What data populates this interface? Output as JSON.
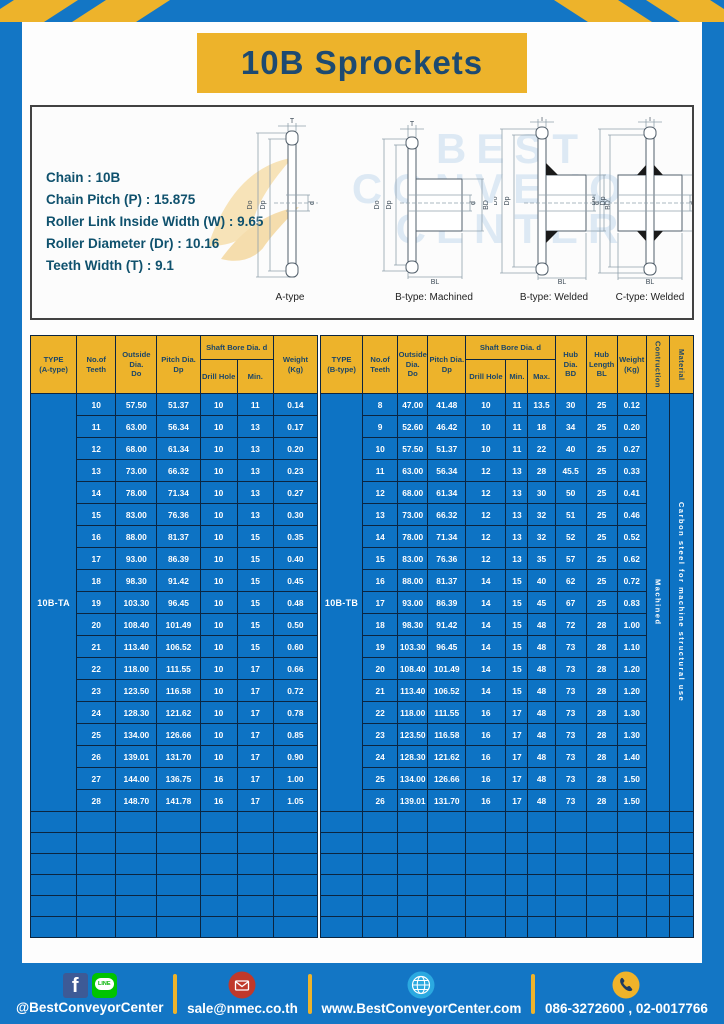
{
  "title": "10B Sprockets",
  "specs": {
    "lines": [
      "Chain : 10B",
      "Chain Pitch (P) : 15.875",
      "Roller Link Inside Width (W) : 9.65",
      "Roller Diameter (Dr) : 10.16",
      "Teeth Width (T) : 9.1"
    ]
  },
  "watermark": {
    "line1": "BEST",
    "line2": "CONVEYOR",
    "line3": "CENTER"
  },
  "diagrams": {
    "captions": [
      "A-type",
      "B-type: Machined",
      "B-type: Welded",
      "C-type: Welded"
    ],
    "dims": {
      "T": "T",
      "Do": "Do",
      "Dp": "Dp",
      "d": "d",
      "BD": "BD",
      "BL": "BL"
    }
  },
  "table_a": {
    "type_label": "10B-TA",
    "header": {
      "type": "TYPE\n(A-type)",
      "teeth": "No.of\nTeeth",
      "outside": "Outside\nDia.\nDo",
      "pitch": "Pitch Dia.\nDp",
      "shaft_group": "Shaft Bore Dia. d",
      "drill": "Drill Hole",
      "min": "Min.",
      "weight": "Weight\n(Kg)"
    },
    "rows": [
      [
        "10",
        "57.50",
        "51.37",
        "10",
        "11",
        "0.14"
      ],
      [
        "11",
        "63.00",
        "56.34",
        "10",
        "13",
        "0.17"
      ],
      [
        "12",
        "68.00",
        "61.34",
        "10",
        "13",
        "0.20"
      ],
      [
        "13",
        "73.00",
        "66.32",
        "10",
        "13",
        "0.23"
      ],
      [
        "14",
        "78.00",
        "71.34",
        "10",
        "13",
        "0.27"
      ],
      [
        "15",
        "83.00",
        "76.36",
        "10",
        "13",
        "0.30"
      ],
      [
        "16",
        "88.00",
        "81.37",
        "10",
        "15",
        "0.35"
      ],
      [
        "17",
        "93.00",
        "86.39",
        "10",
        "15",
        "0.40"
      ],
      [
        "18",
        "98.30",
        "91.42",
        "10",
        "15",
        "0.45"
      ],
      [
        "19",
        "103.30",
        "96.45",
        "10",
        "15",
        "0.48"
      ],
      [
        "20",
        "108.40",
        "101.49",
        "10",
        "15",
        "0.50"
      ],
      [
        "21",
        "113.40",
        "106.52",
        "10",
        "15",
        "0.60"
      ],
      [
        "22",
        "118.00",
        "111.55",
        "10",
        "17",
        "0.66"
      ],
      [
        "23",
        "123.50",
        "116.58",
        "10",
        "17",
        "0.72"
      ],
      [
        "24",
        "128.30",
        "121.62",
        "10",
        "17",
        "0.78"
      ],
      [
        "25",
        "134.00",
        "126.66",
        "10",
        "17",
        "0.85"
      ],
      [
        "26",
        "139.01",
        "131.70",
        "10",
        "17",
        "0.90"
      ],
      [
        "27",
        "144.00",
        "136.75",
        "16",
        "17",
        "1.00"
      ],
      [
        "28",
        "148.70",
        "141.78",
        "16",
        "17",
        "1.05"
      ]
    ],
    "empty_row_count": 6
  },
  "table_b": {
    "type_label": "10B-TB",
    "header": {
      "type": "TYPE\n(B-type)",
      "teeth": "No.of\nTeeth",
      "outside": "Outside\nDia.\nDo",
      "pitch": "Pitch Dia.\nDp",
      "shaft_group": "Shaft Bore Dia. d",
      "drill": "Drill Hole",
      "min": "Min.",
      "max": "Max.",
      "hub_dia": "Hub Dia.\nBD",
      "hub_length": "Hub\nLength\nBL",
      "weight": "Weight\n(Kg)",
      "construction": "Contruction",
      "material": "Material"
    },
    "construction_value": "Machined",
    "material_value": "Carbon steel  for machine structural use",
    "rows": [
      [
        "8",
        "47.00",
        "41.48",
        "10",
        "11",
        "13.5",
        "30",
        "25",
        "0.12"
      ],
      [
        "9",
        "52.60",
        "46.42",
        "10",
        "11",
        "18",
        "34",
        "25",
        "0.20"
      ],
      [
        "10",
        "57.50",
        "51.37",
        "10",
        "11",
        "22",
        "40",
        "25",
        "0.27"
      ],
      [
        "11",
        "63.00",
        "56.34",
        "12",
        "13",
        "28",
        "45.5",
        "25",
        "0.33"
      ],
      [
        "12",
        "68.00",
        "61.34",
        "12",
        "13",
        "30",
        "50",
        "25",
        "0.41"
      ],
      [
        "13",
        "73.00",
        "66.32",
        "12",
        "13",
        "32",
        "51",
        "25",
        "0.46"
      ],
      [
        "14",
        "78.00",
        "71.34",
        "12",
        "13",
        "32",
        "52",
        "25",
        "0.52"
      ],
      [
        "15",
        "83.00",
        "76.36",
        "12",
        "13",
        "35",
        "57",
        "25",
        "0.62"
      ],
      [
        "16",
        "88.00",
        "81.37",
        "14",
        "15",
        "40",
        "62",
        "25",
        "0.72"
      ],
      [
        "17",
        "93.00",
        "86.39",
        "14",
        "15",
        "45",
        "67",
        "25",
        "0.83"
      ],
      [
        "18",
        "98.30",
        "91.42",
        "14",
        "15",
        "48",
        "72",
        "28",
        "1.00"
      ],
      [
        "19",
        "103.30",
        "96.45",
        "14",
        "15",
        "48",
        "73",
        "28",
        "1.10"
      ],
      [
        "20",
        "108.40",
        "101.49",
        "14",
        "15",
        "48",
        "73",
        "28",
        "1.20"
      ],
      [
        "21",
        "113.40",
        "106.52",
        "14",
        "15",
        "48",
        "73",
        "28",
        "1.20"
      ],
      [
        "22",
        "118.00",
        "111.55",
        "16",
        "17",
        "48",
        "73",
        "28",
        "1.30"
      ],
      [
        "23",
        "123.50",
        "116.58",
        "16",
        "17",
        "48",
        "73",
        "28",
        "1.30"
      ],
      [
        "24",
        "128.30",
        "121.62",
        "16",
        "17",
        "48",
        "73",
        "28",
        "1.40"
      ],
      [
        "25",
        "134.00",
        "126.66",
        "16",
        "17",
        "48",
        "73",
        "28",
        "1.50"
      ],
      [
        "26",
        "139.01",
        "131.70",
        "16",
        "17",
        "48",
        "73",
        "28",
        "1.50"
      ]
    ],
    "empty_row_count": 6
  },
  "footer": {
    "facebook_letter": "f",
    "line_badge": "LINE",
    "social_label": "@BestConveyorCenter",
    "email": "sale@nmec.co.th",
    "website": "www.BestConveyorCenter.com",
    "phone": "086-3272600 , 02-0017766"
  },
  "colors": {
    "background_blue": "#1376c5",
    "table_blue": "#0d73c4",
    "accent_yellow": "#edb32b",
    "navy_text": "#1c4668"
  }
}
